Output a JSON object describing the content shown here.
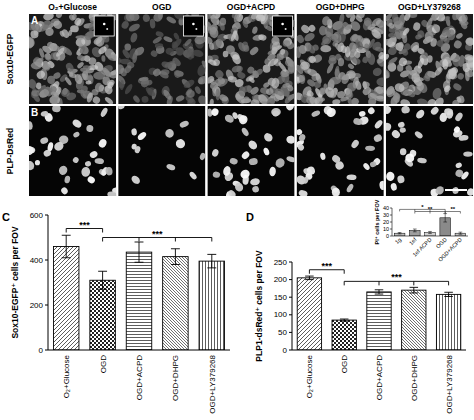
{
  "figure": {
    "columns": [
      "O₂+Glucose",
      "OGD",
      "OGD+ACPD",
      "OGD+DHPG",
      "OGD+LY379268"
    ],
    "rows": [
      "Sox10-EGFP",
      "PLP-DsRed"
    ],
    "panel_letters": [
      "A",
      "B"
    ]
  },
  "chart_data": [
    {
      "type": "bar",
      "panel": "C",
      "ylabel": "Sox10-EGFP⁺ cells per FOV",
      "categories": [
        "O₂+Glucose",
        "OGD",
        "OGD+ACPD",
        "OGD+DHPG",
        "OGD+LY379268"
      ],
      "values": [
        460,
        310,
        435,
        415,
        395
      ],
      "errors": [
        50,
        40,
        45,
        35,
        30
      ],
      "ylim": [
        0,
        600
      ],
      "yticks": [
        0,
        200,
        400,
        600
      ],
      "grid": false,
      "annotations": [
        {
          "text": "***",
          "from": 0,
          "to": 1,
          "y": 540
        },
        {
          "text": "***",
          "from": 1,
          "to": 4,
          "y": 500
        }
      ]
    },
    {
      "type": "bar",
      "panel": "D",
      "ylabel": "PLP1-dsRed⁺ cells per FOV",
      "categories": [
        "O₂+Glucose",
        "OGD",
        "OGD+ACPD",
        "OGD+DHPG",
        "OGD+LY379268"
      ],
      "values": [
        205,
        85,
        165,
        170,
        158
      ],
      "errors": [
        5,
        3,
        6,
        8,
        6
      ],
      "ylim": [
        0,
        250
      ],
      "yticks": [
        0,
        50,
        100,
        150,
        200,
        250
      ],
      "grid": false,
      "annotations": [
        {
          "text": "***",
          "from": 0,
          "to": 1,
          "y": 228
        },
        {
          "text": "***",
          "from": 1,
          "to": 4,
          "y": 195
        }
      ]
    },
    {
      "type": "bar",
      "ylabel": "PI⁺ cells per FOV",
      "categories": [
        "1g",
        "1ef",
        "1ef ACPD",
        "OGD",
        "OGD+ACPD"
      ],
      "values": [
        4,
        8,
        5,
        26,
        4
      ],
      "errors": [
        1,
        2,
        1.5,
        6,
        1.5
      ],
      "ylim": [
        0,
        40
      ],
      "yticks": [
        0,
        10,
        20,
        30,
        40
      ],
      "grid": false,
      "annotations": [
        {
          "text": "*",
          "from": 0,
          "to": 3,
          "y": 38
        },
        {
          "text": "**",
          "from": 1,
          "to": 3,
          "y": 35
        },
        {
          "text": "**",
          "from": 3,
          "to": 4,
          "y": 35
        }
      ]
    }
  ]
}
